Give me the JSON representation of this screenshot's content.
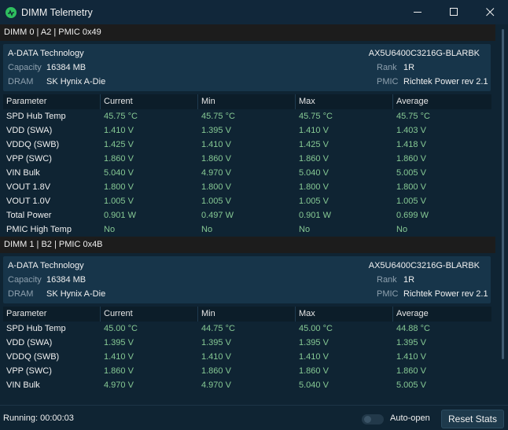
{
  "window": {
    "title": "DIMM Telemetry"
  },
  "columns": [
    "Parameter",
    "Current",
    "Min",
    "Max",
    "Average"
  ],
  "dimms": [
    {
      "header": "DIMM 0 | A2 | PMIC 0x49",
      "manufacturer": "A-DATA Technology",
      "part_number": "AX5U6400C3216G-BLARBK",
      "capacity_label": "Capacity",
      "capacity": "16384 MB",
      "dram_label": "DRAM",
      "dram": "SK Hynix A-Die",
      "rank_label": "Rank",
      "rank": "1R",
      "pmic_label": "PMIC",
      "pmic": "Richtek Power rev 2.1",
      "rows": [
        [
          "SPD Hub Temp",
          "45.75 °C",
          "45.75 °C",
          "45.75 °C",
          "45.75 °C"
        ],
        [
          "VDD (SWA)",
          "1.410 V",
          "1.395 V",
          "1.410 V",
          "1.403 V"
        ],
        [
          "VDDQ (SWB)",
          "1.425 V",
          "1.410 V",
          "1.425 V",
          "1.418 V"
        ],
        [
          "VPP (SWC)",
          "1.860 V",
          "1.860 V",
          "1.860 V",
          "1.860 V"
        ],
        [
          "VIN Bulk",
          "5.040 V",
          "4.970 V",
          "5.040 V",
          "5.005 V"
        ],
        [
          "VOUT 1.8V",
          "1.800 V",
          "1.800 V",
          "1.800 V",
          "1.800 V"
        ],
        [
          "VOUT 1.0V",
          "1.005 V",
          "1.005 V",
          "1.005 V",
          "1.005 V"
        ],
        [
          "Total Power",
          "0.901 W",
          "0.497 W",
          "0.901 W",
          "0.699 W"
        ],
        [
          "PMIC High Temp",
          "No",
          "No",
          "No",
          "No"
        ]
      ]
    },
    {
      "header": "DIMM 1 | B2 | PMIC 0x4B",
      "manufacturer": "A-DATA Technology",
      "part_number": "AX5U6400C3216G-BLARBK",
      "capacity_label": "Capacity",
      "capacity": "16384 MB",
      "dram_label": "DRAM",
      "dram": "SK Hynix A-Die",
      "rank_label": "Rank",
      "rank": "1R",
      "pmic_label": "PMIC",
      "pmic": "Richtek Power rev 2.1",
      "rows": [
        [
          "SPD Hub Temp",
          "45.00 °C",
          "44.75 °C",
          "45.00 °C",
          "44.88 °C"
        ],
        [
          "VDD (SWA)",
          "1.395 V",
          "1.395 V",
          "1.395 V",
          "1.395 V"
        ],
        [
          "VDDQ (SWB)",
          "1.410 V",
          "1.410 V",
          "1.410 V",
          "1.410 V"
        ],
        [
          "VPP (SWC)",
          "1.860 V",
          "1.860 V",
          "1.860 V",
          "1.860 V"
        ],
        [
          "VIN Bulk",
          "4.970 V",
          "4.970 V",
          "5.040 V",
          "5.005 V"
        ]
      ]
    }
  ],
  "status": {
    "running": "Running: 00:00:03",
    "auto_open_label": "Auto-open",
    "auto_open_on": false,
    "reset_label": "Reset Stats"
  },
  "colors": {
    "background": "#0f2433",
    "card": "#17354a",
    "value_green": "#86c994",
    "app_icon": "#2fbf5f"
  },
  "icons": [
    "app-logo-icon",
    "minimize-icon",
    "maximize-icon",
    "close-icon"
  ]
}
